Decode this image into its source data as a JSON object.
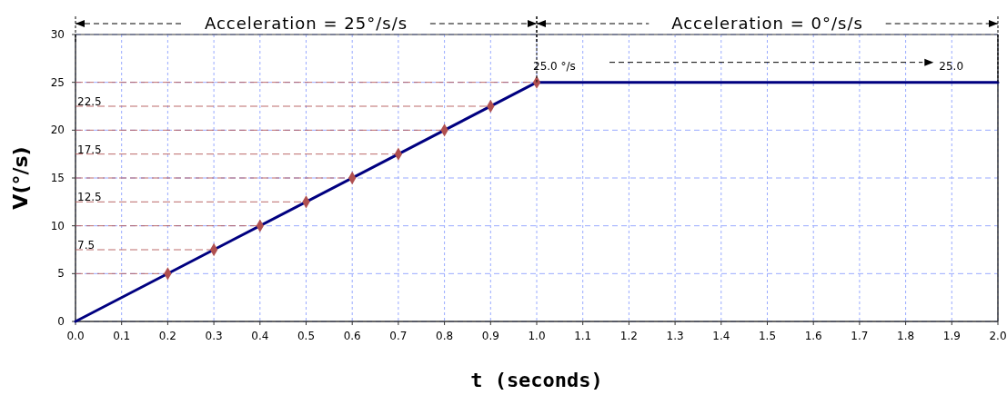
{
  "chart_data": {
    "type": "line",
    "xlabel": "t (seconds)",
    "ylabel": "V(°/s)",
    "xlim": [
      0,
      2
    ],
    "ylim": [
      0,
      30
    ],
    "xticks": [
      {
        "value": 0,
        "label": "0.0"
      },
      {
        "value": 0.1,
        "label": "0.1"
      },
      {
        "value": 0.2,
        "label": "0.2"
      },
      {
        "value": 0.3,
        "label": "0.3"
      },
      {
        "value": 0.4,
        "label": "0.4"
      },
      {
        "value": 0.5,
        "label": "0.5"
      },
      {
        "value": 0.6,
        "label": "0.6"
      },
      {
        "value": 0.7,
        "label": "0.7"
      },
      {
        "value": 0.8,
        "label": "0.8"
      },
      {
        "value": 0.9,
        "label": "0.9"
      },
      {
        "value": 1,
        "label": "1.0"
      },
      {
        "value": 1.1,
        "label": "1.1"
      },
      {
        "value": 1.2,
        "label": "1.2"
      },
      {
        "value": 1.3,
        "label": "1.3"
      },
      {
        "value": 1.4,
        "label": "1.4"
      },
      {
        "value": 1.5,
        "label": "1.5"
      },
      {
        "value": 1.6,
        "label": "1.6"
      },
      {
        "value": 1.7,
        "label": "1.7"
      },
      {
        "value": 1.8,
        "label": "1.8"
      },
      {
        "value": 1.9,
        "label": "1.9"
      },
      {
        "value": 2,
        "label": "2.0"
      }
    ],
    "yticks": [
      0,
      5,
      10,
      15,
      20,
      25,
      30
    ],
    "grid": true,
    "line_style": "solid",
    "series": [
      {
        "color": "#000080",
        "x": [
          0,
          1,
          2
        ],
        "values": [
          0,
          25,
          25
        ],
        "marker": "none"
      },
      {
        "type": "scatter",
        "color": "#b05050",
        "x": [
          0.2,
          0.3,
          0.4,
          0.5,
          0.6,
          0.7,
          0.8,
          0.9,
          1.0
        ],
        "values": [
          5,
          7.5,
          10,
          12.5,
          15,
          17.5,
          20,
          22.5,
          25
        ],
        "marker": "diamond"
      }
    ],
    "ref_lines": [
      {
        "axis": "y",
        "value": 5,
        "color": "#b05050",
        "line_style": "dashed"
      },
      {
        "axis": "y",
        "value": 7.5,
        "label": "7.5",
        "color": "#b05050",
        "line_style": "dashed"
      },
      {
        "axis": "y",
        "value": 10,
        "color": "#b05050",
        "line_style": "dashed"
      },
      {
        "axis": "y",
        "value": 12.5,
        "label": "12.5",
        "color": "#b05050",
        "line_style": "dashed"
      },
      {
        "axis": "y",
        "value": 15,
        "color": "#b05050",
        "line_style": "dashed"
      },
      {
        "axis": "y",
        "value": 17.5,
        "label": "17.5",
        "color": "#b05050",
        "line_style": "dashed"
      },
      {
        "axis": "y",
        "value": 20,
        "color": "#b05050",
        "line_style": "dashed"
      },
      {
        "axis": "y",
        "value": 22.5,
        "label": "22.5",
        "color": "#b05050",
        "line_style": "dashed"
      },
      {
        "axis": "y",
        "value": 25,
        "color": "#b05050",
        "line_style": "dashed"
      }
    ],
    "annotations": [
      "Acceleration = 25°/s/s",
      "Acceleration = 0°/s/s",
      {
        "text": "25.0 °/s",
        "x": 1,
        "y": 25
      },
      {
        "text": "25.0",
        "x": 1.9,
        "y": 25
      }
    ]
  }
}
